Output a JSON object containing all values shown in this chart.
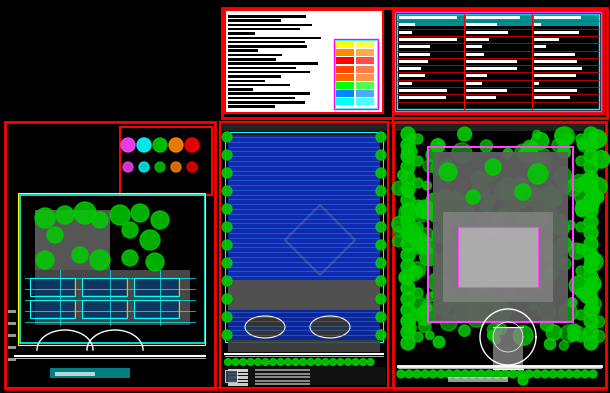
{
  "bg_color": "#000000",
  "fig_width": 6.1,
  "fig_height": 3.93,
  "dpi": 100,
  "red": "#ff0000",
  "green": "#00cc00",
  "bright_green": "#00ff00",
  "blue": "#1133cc",
  "cyan": "#00ffff",
  "magenta": "#ff44ff",
  "yellow": "#ffff00",
  "white": "#ffffff",
  "gray": "#808080",
  "dark_gray": "#404040",
  "mid_gray": "#606060"
}
